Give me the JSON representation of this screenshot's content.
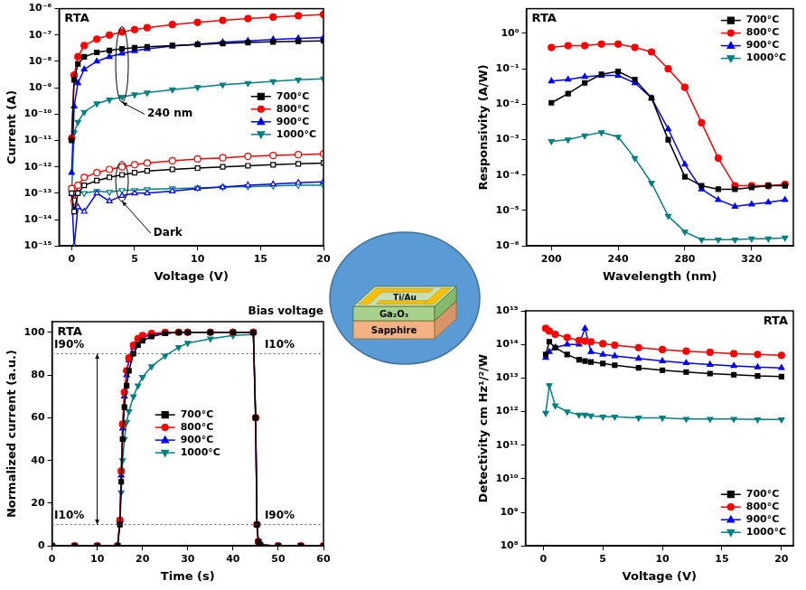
{
  "chart_data": [
    {
      "type": "line",
      "title": "RTA",
      "x_label": "Voltage (V)",
      "y_label": "Current (A)",
      "log": "y",
      "grid": false,
      "legend": "right",
      "xlim": [
        -1,
        20
      ],
      "xticks": [
        0,
        5,
        10,
        15,
        20
      ],
      "ylim": [
        1e-15,
        1e-06
      ],
      "yticks": [
        {
          "value": 1e-15,
          "label": "10⁻¹⁵"
        },
        {
          "value": 1e-14,
          "label": "10⁻¹⁴"
        },
        {
          "value": 1e-13,
          "label": "10⁻¹³"
        },
        {
          "value": 1e-12,
          "label": "10⁻¹²"
        },
        {
          "value": 1e-11,
          "label": "10⁻¹¹"
        },
        {
          "value": 1e-10,
          "label": "10⁻¹⁰"
        },
        {
          "value": 1e-09,
          "label": "10⁻⁹"
        },
        {
          "value": 1e-08,
          "label": "10⁻⁸"
        },
        {
          "value": 1e-07,
          "label": "10⁻⁷"
        },
        {
          "value": 1e-06,
          "label": "10⁻⁶"
        }
      ],
      "x": [
        0,
        0.2,
        0.5,
        1,
        2,
        3,
        4,
        5,
        6,
        8,
        10,
        12,
        14,
        16,
        18,
        20
      ],
      "series": [
        {
          "name": "700°C",
          "color": "#000000",
          "marker": "square",
          "values": [
            1e-11,
            2e-09,
            8e-09,
            1.5e-08,
            2.2e-08,
            2.6e-08,
            3e-08,
            3.3e-08,
            3.6e-08,
            4e-08,
            4.4e-08,
            4.8e-08,
            5.2e-08,
            5.5e-08,
            5.8e-08,
            6e-08
          ],
          "dark": [
            1e-13,
            2e-14,
            1e-13,
            2e-13,
            3e-13,
            4e-13,
            5e-13,
            6e-13,
            7e-13,
            8e-13,
            9e-13,
            1e-12,
            1.1e-12,
            1.2e-12,
            1.3e-12,
            1.4e-12
          ]
        },
        {
          "name": "800°C",
          "color": "#ff0000",
          "marker": "circle",
          "values": [
            1.2e-11,
            3e-09,
            1.5e-08,
            4e-08,
            7e-08,
            1e-07,
            1.3e-07,
            1.6e-07,
            1.9e-07,
            2.5e-07,
            3e-07,
            3.6e-07,
            4.2e-07,
            4.8e-07,
            5.4e-07,
            6e-07
          ],
          "dark": [
            1.5e-13,
            5e-14,
            2e-13,
            4e-13,
            6e-13,
            8e-13,
            1e-12,
            1.2e-12,
            1.4e-12,
            1.7e-12,
            2e-12,
            2.2e-12,
            2.5e-12,
            2.7e-12,
            2.9e-12,
            3.1e-12
          ]
        },
        {
          "name": "900°C",
          "color": "#0000ff",
          "marker": "triangle-up",
          "values": [
            6e-13,
            2e-10,
            1.5e-09,
            5e-09,
            1e-08,
            1.5e-08,
            2e-08,
            2.5e-08,
            3e-08,
            3.8e-08,
            4.5e-08,
            5.3e-08,
            6e-08,
            6.8e-08,
            7.5e-08,
            8e-08
          ],
          "dark": [
            1e-13,
            1e-15,
            3e-14,
            2e-14,
            1e-13,
            5e-14,
            8e-14,
            1e-13,
            1e-13,
            1.2e-13,
            1.5e-13,
            1.7e-13,
            2e-13,
            2.2e-13,
            2.5e-13,
            2.7e-13
          ]
        },
        {
          "name": "1000°C",
          "color": "#008080",
          "marker": "triangle-down",
          "values": [
            1e-13,
            2e-11,
            5e-11,
            1.2e-10,
            2.5e-10,
            3.5e-10,
            4.5e-10,
            5.5e-10,
            6.5e-10,
            8.5e-10,
            1.05e-09,
            1.3e-09,
            1.5e-09,
            1.75e-09,
            2e-09,
            2.2e-09
          ],
          "dark": [
            1e-13,
            1e-13,
            1.1e-13,
            1e-13,
            1.2e-13,
            1.1e-13,
            1.3e-13,
            1.3e-13,
            1.4e-13,
            1.5e-13,
            1.6e-13,
            1.7e-13,
            1.8e-13,
            1.9e-13,
            2e-13,
            2e-13
          ]
        }
      ],
      "annotations": [
        {
          "text": "240 nm",
          "x": 6,
          "y": 1e-10
        },
        {
          "text": "Dark",
          "x": 6.5,
          "y": 3e-15
        }
      ]
    },
    {
      "type": "line",
      "title": "RTA",
      "x_label": "Wavelength (nm)",
      "y_label": "Responsivity (A/W)",
      "log": "y",
      "grid": false,
      "legend": "top right",
      "xlim": [
        185,
        345
      ],
      "xticks": [
        200,
        240,
        280,
        320
      ],
      "ylim": [
        1e-06,
        5
      ],
      "yticks": [
        {
          "value": 1e-06,
          "label": "10⁻⁶"
        },
        {
          "value": 1e-05,
          "label": "10⁻⁵"
        },
        {
          "value": 0.0001,
          "label": "10⁻⁴"
        },
        {
          "value": 0.001,
          "label": "10⁻³"
        },
        {
          "value": 0.01,
          "label": "10⁻²"
        },
        {
          "value": 0.1,
          "label": "10⁻¹"
        },
        {
          "value": 1,
          "label": "10⁰"
        }
      ],
      "x": [
        200,
        210,
        220,
        230,
        240,
        250,
        260,
        270,
        280,
        290,
        300,
        310,
        320,
        330,
        340
      ],
      "series": [
        {
          "name": "700°C",
          "color": "#000000",
          "marker": "square",
          "values": [
            0.011,
            0.02,
            0.04,
            0.07,
            0.085,
            0.05,
            0.015,
            0.001,
            9e-05,
            5e-05,
            4e-05,
            4e-05,
            4.5e-05,
            5e-05,
            5e-05
          ]
        },
        {
          "name": "800°C",
          "color": "#ff0000",
          "marker": "circle",
          "values": [
            0.4,
            0.45,
            0.45,
            0.5,
            0.5,
            0.4,
            0.3,
            0.1,
            0.03,
            0.003,
            0.0003,
            5e-05,
            5e-05,
            5e-05,
            5.5e-05
          ]
        },
        {
          "name": "900°C",
          "color": "#0000ff",
          "marker": "triangle-up",
          "values": [
            0.045,
            0.05,
            0.06,
            0.065,
            0.065,
            0.04,
            0.015,
            0.002,
            0.0002,
            4e-05,
            2e-05,
            1.3e-05,
            1.5e-05,
            1.7e-05,
            2e-05
          ]
        },
        {
          "name": "1000°C",
          "color": "#008080",
          "marker": "triangle-down",
          "values": [
            0.0009,
            0.001,
            0.0013,
            0.0016,
            0.0012,
            0.0003,
            6e-05,
            7e-06,
            2.5e-06,
            1.5e-06,
            1.5e-06,
            1.5e-06,
            1.6e-06,
            1.6e-06,
            1.7e-06
          ]
        }
      ]
    },
    {
      "type": "line",
      "title": "RTA",
      "x_label": "Time (s)",
      "y_label": "Normalized current (a.u.)",
      "grid": false,
      "legend": "center",
      "xlim": [
        0,
        60
      ],
      "xticks": [
        0,
        10,
        20,
        30,
        40,
        50,
        60
      ],
      "ylim": [
        0,
        105
      ],
      "yticks": [
        0,
        20,
        40,
        60,
        80,
        100
      ],
      "x": [
        0,
        5,
        10,
        14.5,
        15,
        15.3,
        15.6,
        16,
        16.5,
        17,
        18,
        19,
        20,
        22,
        25,
        28,
        30,
        35,
        40,
        44.5,
        45,
        45.3,
        45.6,
        46,
        50,
        55,
        60
      ],
      "series": [
        {
          "name": "700°C",
          "color": "#000000",
          "marker": "square",
          "values": [
            0,
            0,
            0,
            0,
            10,
            30,
            50,
            65,
            75,
            82,
            90,
            94,
            96,
            98,
            99.5,
            100,
            100,
            100,
            100,
            100,
            60,
            10,
            2,
            0.5,
            0,
            0,
            0
          ]
        },
        {
          "name": "800°C",
          "color": "#ff0000",
          "marker": "circle",
          "values": [
            0,
            0,
            0,
            0,
            12,
            35,
            57,
            72,
            82,
            88,
            94,
            97,
            98.5,
            99.5,
            100,
            100,
            100,
            100,
            100,
            100,
            60,
            10,
            2,
            0.5,
            0,
            0,
            0
          ]
        },
        {
          "name": "900°C",
          "color": "#0000ff",
          "marker": "triangle-up",
          "values": [
            0,
            0,
            0,
            0,
            12,
            33,
            55,
            70,
            80,
            87,
            93,
            96,
            97.5,
            99,
            99.5,
            100,
            100,
            100,
            100,
            100,
            60,
            10,
            2,
            0.5,
            0,
            0,
            0
          ]
        },
        {
          "name": "1000°C",
          "color": "#008080",
          "marker": "triangle-down",
          "values": [
            0,
            0,
            0,
            0,
            10,
            25,
            40,
            50,
            58,
            63,
            70,
            75,
            79,
            84,
            89,
            93,
            95,
            97,
            98.5,
            99,
            60,
            10,
            2,
            0.5,
            0,
            0,
            0
          ]
        }
      ],
      "hlines": [
        90,
        10
      ],
      "annotations": [
        {
          "text": "I90%",
          "x": 0.5,
          "y": 94
        },
        {
          "text": "I10%",
          "x": 0.5,
          "y": 14
        },
        {
          "text": "I10%",
          "x": 47,
          "y": 94
        },
        {
          "text": "I90%",
          "x": 47,
          "y": 14
        },
        {
          "text": "Bias voltage"
        }
      ]
    },
    {
      "type": "line",
      "title": "RTA",
      "x_label": "Voltage (V)",
      "y_label": "Detectivity cm Hz¹/²/W",
      "log": "y",
      "grid": false,
      "legend": "bottom right",
      "xlim": [
        -1.5,
        21
      ],
      "xticks": [
        0,
        5,
        10,
        15,
        20
      ],
      "ylim": [
        100000000.0,
        1000000000000000.0
      ],
      "yticks": [
        {
          "value": 100000000.0,
          "label": "10⁸"
        },
        {
          "value": 1000000000.0,
          "label": "10⁹"
        },
        {
          "value": 10000000000.0,
          "label": "10¹⁰"
        },
        {
          "value": 100000000000.0,
          "label": "10¹¹"
        },
        {
          "value": 1000000000000.0,
          "label": "10¹²"
        },
        {
          "value": 10000000000000.0,
          "label": "10¹³"
        },
        {
          "value": 100000000000000.0,
          "label": "10¹⁴"
        },
        {
          "value": 1000000000000000.0,
          "label": "10¹⁵"
        }
      ],
      "x": [
        0.2,
        0.5,
        1,
        2,
        3,
        3.5,
        4,
        5,
        6,
        8,
        10,
        12,
        14,
        16,
        18,
        20
      ],
      "series": [
        {
          "name": "700°C",
          "color": "#000000",
          "marker": "square",
          "values": [
            50000000000000.0,
            120000000000000.0,
            80000000000000.0,
            50000000000000.0,
            35000000000000.0,
            32000000000000.0,
            30000000000000.0,
            27000000000000.0,
            24000000000000.0,
            20000000000000.0,
            17000000000000.0,
            15000000000000.0,
            13500000000000.0,
            12500000000000.0,
            11500000000000.0,
            11000000000000.0
          ]
        },
        {
          "name": "800°C",
          "color": "#ff0000",
          "marker": "circle",
          "values": [
            300000000000000.0,
            250000000000000.0,
            200000000000000.0,
            160000000000000.0,
            130000000000000.0,
            125000000000000.0,
            120000000000000.0,
            105000000000000.0,
            95000000000000.0,
            80000000000000.0,
            70000000000000.0,
            63000000000000.0,
            58000000000000.0,
            53000000000000.0,
            50000000000000.0,
            47000000000000.0
          ]
        },
        {
          "name": "900°C",
          "color": "#0000ff",
          "marker": "triangle-up",
          "values": [
            40000000000000.0,
            60000000000000.0,
            80000000000000.0,
            100000000000000.0,
            100000000000000.0,
            300000000000000.0,
            60000000000000.0,
            50000000000000.0,
            45000000000000.0,
            38000000000000.0,
            32000000000000.0,
            28000000000000.0,
            25000000000000.0,
            23000000000000.0,
            21000000000000.0,
            20000000000000.0
          ]
        },
        {
          "name": "1000°C",
          "color": "#008080",
          "marker": "triangle-down",
          "values": [
            900000000000.0,
            6000000000000.0,
            1500000000000.0,
            1000000000000.0,
            800000000000.0,
            800000000000.0,
            750000000000.0,
            700000000000.0,
            700000000000.0,
            650000000000.0,
            650000000000.0,
            600000000000.0,
            600000000000.0,
            600000000000.0,
            580000000000.0,
            580000000000.0
          ]
        }
      ]
    }
  ],
  "diagram": {
    "electrode": "Ti/Au",
    "film": "Ga₂O₃",
    "substrate": "Sapphire"
  }
}
